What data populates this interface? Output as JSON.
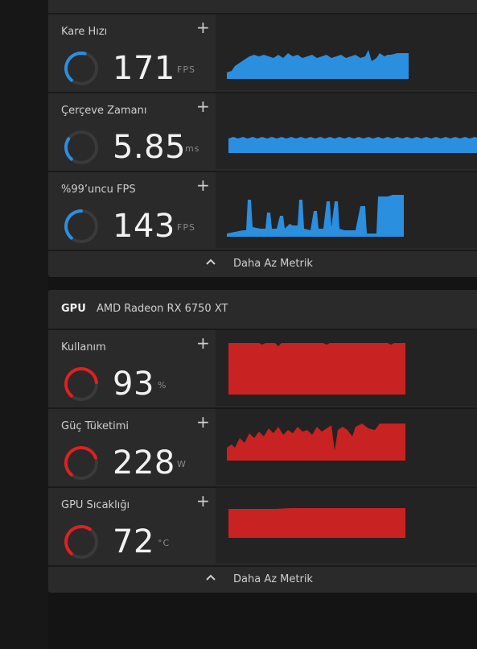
{
  "fps_section": {
    "metrics": [
      {
        "label": "Kare Hızı",
        "value": "171",
        "unit": "FPS",
        "gauge_fraction": 0.55,
        "color": "#2b8fe0"
      },
      {
        "label": "Çerçeve Zamanı",
        "value": "5.85",
        "unit": "ms",
        "gauge_fraction": 0.3,
        "color": "#2b8fe0"
      },
      {
        "label": "%99’uncu FPS",
        "value": "143",
        "unit": "FPS",
        "gauge_fraction": 0.5,
        "color": "#2b8fe0"
      }
    ],
    "footer_label": "Daha Az Metrik"
  },
  "gpu_section": {
    "title": "GPU",
    "device": "AMD Radeon RX 6750 XT",
    "metrics": [
      {
        "label": "Kullanım",
        "value": "93",
        "unit": "%",
        "gauge_fraction": 0.8,
        "color": "#e02020"
      },
      {
        "label": "Güç Tüketimi",
        "value": "228",
        "unit": "W",
        "gauge_fraction": 0.75,
        "color": "#e02020"
      },
      {
        "label": "GPU Sıcaklığı",
        "value": "72",
        "unit": "°C",
        "gauge_fraction": 0.62,
        "color": "#e02020"
      }
    ],
    "footer_label": "Daha Az Metrik"
  },
  "icons": {
    "add": "plus-icon",
    "collapse": "chevron-up-icon"
  },
  "plus_symbol": "+"
}
